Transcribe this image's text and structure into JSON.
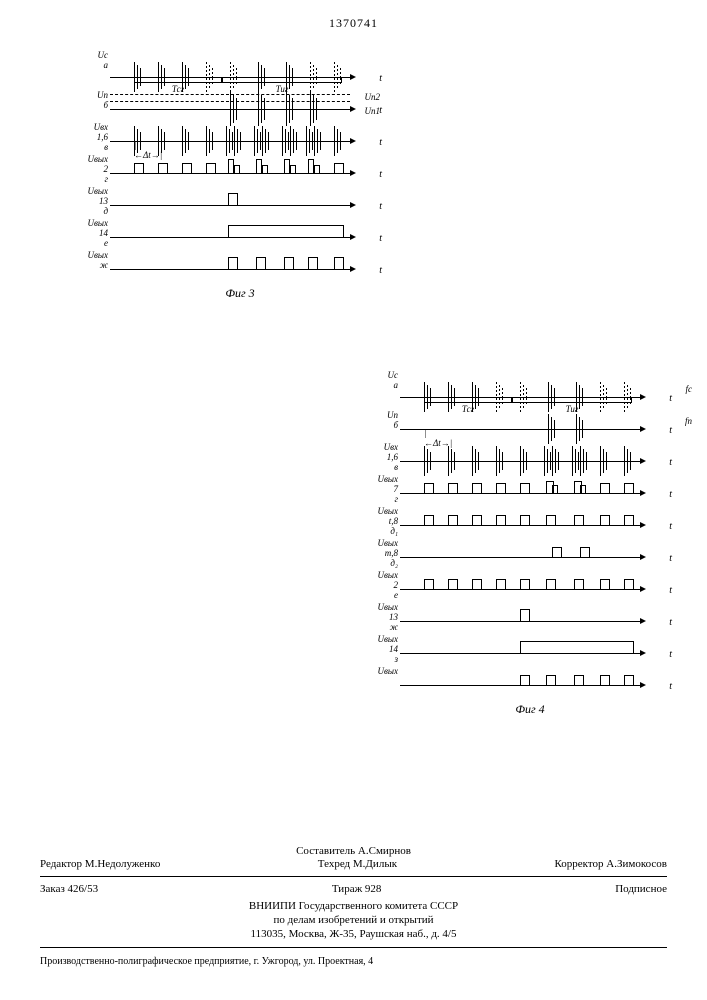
{
  "header_number": "1370741",
  "fig3": {
    "caption": "Фиг 3",
    "axis_width": 240,
    "periods": {
      "Tcr": [
        24,
        112
      ],
      "Tur": [
        112,
        232
      ],
      "Tcr_label": "Тсг",
      "Tur_label": "Тиг"
    },
    "annotations": {
      "Un2": "Uп2",
      "Un1": "Uп1"
    },
    "rows": [
      {
        "key": "a",
        "label_top": "Uс",
        "label_bot": "а",
        "type": "burst_bi",
        "bursts": [
          24,
          48,
          72,
          96,
          120,
          148,
          176,
          200,
          224
        ],
        "dashed_idx": [
          3,
          4,
          7,
          8
        ],
        "height_up": 16,
        "height_dn": 14,
        "t": "t"
      },
      {
        "key": "b",
        "label_top": "Uп",
        "label_bot": "б",
        "type": "burst_bi",
        "bursts": [
          120,
          148,
          176,
          200
        ],
        "height_up": 18,
        "height_dn": 16,
        "t": "t",
        "dash_lines": [
          8,
          15
        ]
      },
      {
        "key": "v",
        "label_top": "Uвх\n1,6",
        "label_bot": "в",
        "type": "burst_bi",
        "bursts": [
          24,
          48,
          72,
          96,
          116,
          124,
          144,
          152,
          172,
          180,
          196,
          204,
          224
        ],
        "height_up": 16,
        "height_dn": 14,
        "t": "t"
      },
      {
        "key": "g",
        "label_top": "Uвых\n2",
        "label_bot": "г",
        "type": "pulse",
        "pulses": [
          [
            24,
            8,
            10
          ],
          [
            48,
            8,
            10
          ],
          [
            72,
            8,
            10
          ],
          [
            96,
            8,
            10
          ],
          [
            118,
            4,
            14
          ],
          [
            124,
            4,
            8
          ],
          [
            146,
            4,
            14
          ],
          [
            152,
            4,
            8
          ],
          [
            174,
            4,
            14
          ],
          [
            180,
            4,
            8
          ],
          [
            198,
            4,
            14
          ],
          [
            204,
            4,
            8
          ],
          [
            224,
            8,
            10
          ]
        ],
        "t": "t",
        "delta_t": [
          24,
          48
        ]
      },
      {
        "key": "d",
        "label_top": "Uвых\n13",
        "label_bot": "д",
        "type": "pulse",
        "pulses": [
          [
            118,
            8,
            12
          ]
        ],
        "t": "t"
      },
      {
        "key": "e",
        "label_top": "Uвых\n14",
        "label_bot": "е",
        "type": "step",
        "step": [
          118,
          232,
          12
        ],
        "t": "t"
      },
      {
        "key": "zh",
        "label_top": "Uвых",
        "label_bot": "ж",
        "type": "pulse",
        "pulses": [
          [
            118,
            8,
            12
          ],
          [
            146,
            8,
            12
          ],
          [
            174,
            8,
            12
          ],
          [
            198,
            8,
            12
          ],
          [
            224,
            8,
            12
          ]
        ],
        "t": "t"
      }
    ]
  },
  "fig4": {
    "caption": "Фиг 4",
    "axis_width": 240,
    "periods": {
      "Tcr": [
        24,
        112
      ],
      "Tur": [
        112,
        232
      ],
      "Tcr_label": "Тсг",
      "Tur_label": "Тиг"
    },
    "rows": [
      {
        "key": "a",
        "label_top": "Uс",
        "label_bot": "а",
        "type": "burst_bi",
        "bursts": [
          24,
          48,
          72,
          96,
          120,
          148,
          176,
          200,
          224
        ],
        "dashed_idx": [
          3,
          4,
          7,
          8
        ],
        "height_up": 16,
        "height_dn": 14,
        "t": "t",
        "right_extra": "fс"
      },
      {
        "key": "b",
        "label_top": "Uп",
        "label_bot": "б",
        "type": "burst_bi",
        "bursts": [
          148,
          176
        ],
        "height_up": 16,
        "height_dn": 14,
        "t": "t",
        "right_extra": "fп"
      },
      {
        "key": "v",
        "label_top": "Uвх\n1,6",
        "label_bot": "в",
        "type": "burst_bi",
        "bursts": [
          24,
          48,
          72,
          96,
          120,
          144,
          152,
          172,
          180,
          200,
          224
        ],
        "height_up": 16,
        "height_dn": 14,
        "t": "t",
        "delta_t": [
          24,
          48
        ]
      },
      {
        "key": "g",
        "label_top": "Uвых\n7",
        "label_bot": "г",
        "type": "pulse",
        "pulses": [
          [
            24,
            8,
            10
          ],
          [
            48,
            8,
            10
          ],
          [
            72,
            8,
            10
          ],
          [
            96,
            8,
            10
          ],
          [
            120,
            8,
            10
          ],
          [
            146,
            6,
            12
          ],
          [
            152,
            4,
            8
          ],
          [
            174,
            6,
            12
          ],
          [
            180,
            4,
            8
          ],
          [
            200,
            8,
            10
          ],
          [
            224,
            8,
            10
          ]
        ],
        "t": "t"
      },
      {
        "key": "d1",
        "label_top": "Uвых\nt,8",
        "label_bot": "д₁",
        "type": "pulse",
        "pulses": [
          [
            24,
            8,
            10
          ],
          [
            48,
            8,
            10
          ],
          [
            72,
            8,
            10
          ],
          [
            96,
            8,
            10
          ],
          [
            120,
            8,
            10
          ],
          [
            146,
            8,
            10
          ],
          [
            174,
            8,
            10
          ],
          [
            200,
            8,
            10
          ],
          [
            224,
            8,
            10
          ]
        ],
        "t": "t"
      },
      {
        "key": "d2",
        "label_top": "Uвых\nm,8",
        "label_bot": "д₂",
        "type": "pulse",
        "pulses": [
          [
            152,
            8,
            10
          ],
          [
            180,
            8,
            10
          ]
        ],
        "t": "t"
      },
      {
        "key": "e",
        "label_top": "Uвых\n2",
        "label_bot": "е",
        "type": "pulse",
        "pulses": [
          [
            24,
            8,
            10
          ],
          [
            48,
            8,
            10
          ],
          [
            72,
            8,
            10
          ],
          [
            96,
            8,
            10
          ],
          [
            120,
            8,
            10
          ],
          [
            146,
            8,
            10
          ],
          [
            174,
            8,
            10
          ],
          [
            200,
            8,
            10
          ],
          [
            224,
            8,
            10
          ]
        ],
        "t": "t"
      },
      {
        "key": "zh",
        "label_top": "Uвых\n13",
        "label_bot": "ж",
        "type": "pulse",
        "pulses": [
          [
            120,
            8,
            12
          ]
        ],
        "t": "t"
      },
      {
        "key": "z",
        "label_top": "Uвых\n14",
        "label_bot": "з",
        "type": "step",
        "step": [
          120,
          232,
          12
        ],
        "t": "t"
      },
      {
        "key": "i",
        "label_top": "Uвых",
        "label_bot": "",
        "type": "pulse",
        "pulses": [
          [
            120,
            8,
            10
          ],
          [
            146,
            8,
            10
          ],
          [
            174,
            8,
            10
          ],
          [
            200,
            8,
            10
          ],
          [
            224,
            8,
            10
          ]
        ],
        "t": "t"
      }
    ]
  },
  "footer": {
    "compiler": "Составитель А.Смирнов",
    "editor": "Редактор М.Недолуженко",
    "techred": "Техред М.Дилык",
    "corrector": "Корректор А.Зимокосов",
    "order": "Заказ 426/53",
    "tirazh": "Тираж 928",
    "podpisnoe": "Подписное",
    "org_lines": [
      "ВНИИПИ Государственного комитета СССР",
      "по делам изобретений и открытий",
      "113035, Москва, Ж-35, Раушская наб., д. 4/5"
    ],
    "printer": "Производственно-полиграфическое предприятие, г. Ужгород, ул. Проектная, 4"
  }
}
